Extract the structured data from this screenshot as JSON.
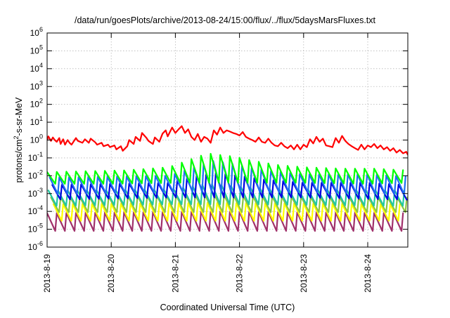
{
  "chart_data": {
    "type": "line",
    "title": "/data/run/goesPlots/archive/2013-08-24/15:00/flux/../flux/5daysMarsFluxes.txt",
    "xlabel": "Coordinated Universal Time (UTC)",
    "ylabel": {
      "prefix": "protons/cm",
      "sup": "2",
      "suffix": "-s-sr-MeV"
    },
    "yscale": "log",
    "ylim": [
      1e-06,
      1000000
    ],
    "xlim": [
      "2013-08-19 00:00",
      "2013-08-24 15:00"
    ],
    "grid": true,
    "legend": "none",
    "x_ticks": [
      "2013-8-19",
      "2013-8-20",
      "2013-8-21",
      "2013-8-22",
      "2013-8-23",
      "2013-8-24"
    ],
    "y_ticks": [
      {
        "value": 1e-06,
        "base": "10",
        "exp": "-6"
      },
      {
        "value": 1e-05,
        "base": "10",
        "exp": "-5"
      },
      {
        "value": 0.0001,
        "base": "10",
        "exp": "-4"
      },
      {
        "value": 0.001,
        "base": "10",
        "exp": "-3"
      },
      {
        "value": 0.01,
        "base": "10",
        "exp": "-2"
      },
      {
        "value": 0.1,
        "base": "10",
        "exp": "-1"
      },
      {
        "value": 1,
        "base": "10",
        "exp": "0"
      },
      {
        "value": 10,
        "base": "10",
        "exp": "1"
      },
      {
        "value": 100,
        "base": "10",
        "exp": "2"
      },
      {
        "value": 1000,
        "base": "10",
        "exp": "3"
      },
      {
        "value": 10000,
        "base": "10",
        "exp": "4"
      },
      {
        "value": 100000,
        "base": "10",
        "exp": "5"
      },
      {
        "value": 1000000,
        "base": "10",
        "exp": "6"
      }
    ],
    "series": [
      {
        "color": "#ff0000",
        "x_day": [
          0.0,
          0.02,
          0.06,
          0.09,
          0.12,
          0.15,
          0.19,
          0.21,
          0.25,
          0.28,
          0.32,
          0.35,
          0.38,
          0.45,
          0.48,
          0.55,
          0.59,
          0.65,
          0.68,
          0.75,
          0.78,
          0.85,
          0.88,
          0.95,
          0.98,
          1.05,
          1.08,
          1.15,
          1.18,
          1.25,
          1.28,
          1.35,
          1.38,
          1.45,
          1.48,
          1.55,
          1.58,
          1.65,
          1.68,
          1.75,
          1.8,
          1.85,
          1.88,
          1.95,
          2.0,
          2.05,
          2.1,
          2.15,
          2.2,
          2.25,
          2.3,
          2.35,
          2.4,
          2.45,
          2.5,
          2.55,
          2.6,
          2.65,
          2.7,
          2.75,
          2.8,
          2.85,
          2.9,
          2.95,
          3.0,
          3.05,
          3.1,
          3.15,
          3.2,
          3.25,
          3.3,
          3.35,
          3.4,
          3.45,
          3.5,
          3.55,
          3.6,
          3.65,
          3.7,
          3.75,
          3.8,
          3.85,
          3.9,
          3.95,
          4.0,
          4.05,
          4.1,
          4.15,
          4.2,
          4.25,
          4.3,
          4.35,
          4.4,
          4.45,
          4.5,
          4.55,
          4.6,
          4.65,
          4.7,
          4.75,
          4.8,
          4.85,
          4.9,
          4.95,
          5.0,
          5.05,
          5.1,
          5.15,
          5.2,
          5.25,
          5.3,
          5.35,
          5.4,
          5.45,
          5.5,
          5.55,
          5.6,
          5.625
        ],
        "y": [
          1.0,
          1.6,
          0.9,
          1.4,
          1.0,
          0.8,
          1.3,
          0.6,
          1.1,
          0.55,
          1.0,
          0.7,
          0.55,
          1.3,
          0.9,
          0.7,
          1.1,
          0.7,
          1.2,
          0.75,
          0.55,
          0.7,
          0.45,
          0.55,
          0.4,
          0.5,
          0.3,
          0.45,
          0.25,
          0.45,
          1.0,
          0.6,
          1.5,
          0.9,
          2.5,
          1.3,
          0.9,
          0.6,
          1.4,
          0.8,
          2.3,
          3.5,
          1.6,
          5.0,
          2.5,
          4.0,
          6.0,
          2.5,
          4.0,
          1.5,
          1.0,
          2.2,
          0.8,
          1.5,
          1.2,
          0.7,
          3.5,
          2.0,
          5.0,
          2.5,
          3.5,
          3.0,
          2.5,
          2.2,
          1.8,
          2.8,
          1.5,
          1.2,
          1.0,
          0.8,
          1.4,
          0.8,
          0.7,
          1.2,
          0.7,
          0.5,
          0.45,
          0.7,
          0.45,
          0.35,
          0.5,
          0.3,
          0.55,
          0.3,
          0.55,
          0.4,
          1.1,
          0.65,
          1.5,
          0.8,
          1.2,
          0.5,
          0.45,
          0.4,
          1.3,
          0.7,
          1.7,
          0.9,
          0.6,
          0.45,
          0.35,
          0.28,
          0.55,
          0.3,
          0.5,
          0.4,
          0.6,
          0.35,
          0.5,
          0.3,
          0.4,
          0.25,
          0.35,
          0.2,
          0.28,
          0.18,
          0.22,
          0.15
        ]
      },
      {
        "color": "#00ff00",
        "period": 0.15,
        "x_start": 0.0,
        "x_end": 5.625,
        "low": [
          [
            0,
            0.0035
          ],
          [
            1.0,
            0.0035
          ],
          [
            2.0,
            0.004
          ],
          [
            3.0,
            0.004
          ],
          [
            4.0,
            0.004
          ],
          [
            5.0,
            0.0035
          ],
          [
            5.625,
            0.004
          ]
        ],
        "high": [
          [
            0,
            0.016
          ],
          [
            0.6,
            0.018
          ],
          [
            1.2,
            0.02
          ],
          [
            1.9,
            0.03
          ],
          [
            2.3,
            0.1
          ],
          [
            2.5,
            0.18
          ],
          [
            2.9,
            0.12
          ],
          [
            3.2,
            0.07
          ],
          [
            3.6,
            0.04
          ],
          [
            4.0,
            0.03
          ],
          [
            4.6,
            0.025
          ],
          [
            5.1,
            0.025
          ],
          [
            5.625,
            0.02
          ]
        ]
      },
      {
        "color": "#1e6ff0",
        "period": 0.15,
        "x_start": 0.04,
        "x_end": 5.625,
        "low": [
          [
            0,
            0.0009
          ],
          [
            2.0,
            0.0012
          ],
          [
            3.0,
            0.0012
          ],
          [
            4.0,
            0.0012
          ],
          [
            5.625,
            0.0009
          ]
        ],
        "high": [
          [
            0,
            0.008
          ],
          [
            1.0,
            0.009
          ],
          [
            1.9,
            0.01
          ],
          [
            2.3,
            0.03
          ],
          [
            2.6,
            0.07
          ],
          [
            3.0,
            0.04
          ],
          [
            3.4,
            0.02
          ],
          [
            4.0,
            0.012
          ],
          [
            5.0,
            0.012
          ],
          [
            5.625,
            0.009
          ]
        ]
      },
      {
        "color": "#0000e0",
        "period": 0.15,
        "x_start": 0.08,
        "x_end": 5.625,
        "low": [
          [
            0,
            0.00045
          ],
          [
            2.0,
            0.0006
          ],
          [
            3.0,
            0.0006
          ],
          [
            4.0,
            0.0006
          ],
          [
            5.625,
            0.00045
          ]
        ],
        "high": [
          [
            0,
            0.003
          ],
          [
            1.0,
            0.0035
          ],
          [
            1.9,
            0.004
          ],
          [
            2.3,
            0.009
          ],
          [
            2.6,
            0.015
          ],
          [
            3.0,
            0.01
          ],
          [
            3.4,
            0.006
          ],
          [
            4.0,
            0.004
          ],
          [
            5.0,
            0.004
          ],
          [
            5.625,
            0.003
          ]
        ]
      },
      {
        "color": "#20c8a0",
        "period": 0.15,
        "x_start": 0.02,
        "x_end": 5.625,
        "low": [
          [
            0,
            0.0002
          ],
          [
            2.0,
            0.00025
          ],
          [
            3.0,
            0.00025
          ],
          [
            5.625,
            0.0002
          ]
        ],
        "high": [
          [
            0,
            0.0015
          ],
          [
            1.9,
            0.0017
          ],
          [
            2.5,
            0.0035
          ],
          [
            3.0,
            0.0025
          ],
          [
            3.5,
            0.0018
          ],
          [
            5.625,
            0.0015
          ]
        ]
      },
      {
        "color": "#8ec63f",
        "period": 0.15,
        "x_start": 0.06,
        "x_end": 5.625,
        "low": [
          [
            0,
            9e-05
          ],
          [
            5.625,
            9e-05
          ]
        ],
        "high": [
          [
            0,
            0.0006
          ],
          [
            2.5,
            0.0009
          ],
          [
            3.2,
            0.0007
          ],
          [
            5.625,
            0.0006
          ]
        ]
      },
      {
        "color": "#ffff00",
        "period": 0.15,
        "x_start": 0.1,
        "x_end": 5.625,
        "low": [
          [
            0,
            3e-05
          ],
          [
            5.625,
            3e-05
          ]
        ],
        "high": [
          [
            0,
            0.00025
          ],
          [
            2.5,
            0.0003
          ],
          [
            5.625,
            0.00025
          ]
        ]
      },
      {
        "color": "#a0306a",
        "period": 0.15,
        "x_start": 0.0,
        "x_end": 5.625,
        "low": [
          [
            0,
            8e-06
          ],
          [
            5.625,
            8e-06
          ]
        ],
        "high": [
          [
            0,
            8e-05
          ],
          [
            2.5,
            0.0001
          ],
          [
            5.625,
            8e-05
          ]
        ]
      }
    ]
  }
}
